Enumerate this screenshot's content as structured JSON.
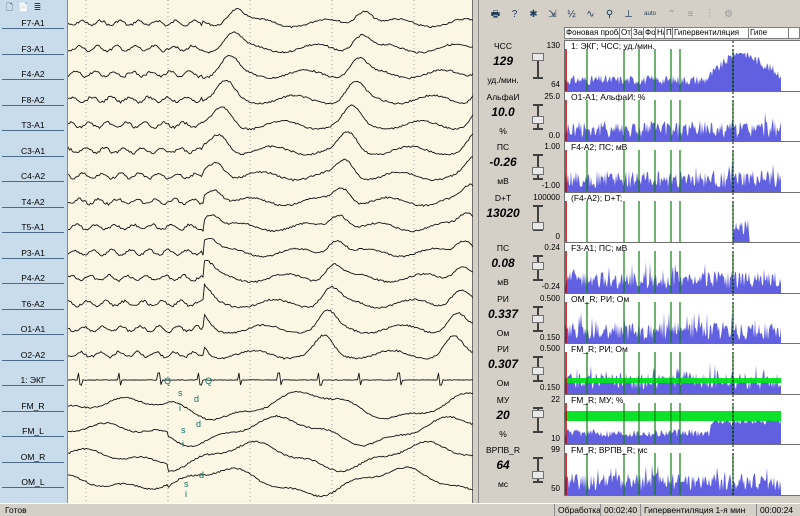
{
  "channels": [
    "F7-A1",
    "F3-A1",
    "F4-A2",
    "F8-A2",
    "T3-A1",
    "C3-A1",
    "C4-A2",
    "T4-A2",
    "T5-A1",
    "P3-A1",
    "P4-A2",
    "T6-A2",
    "O1-A1",
    "O2-A2",
    "1: ЭКГ",
    "FM_R",
    "FM_L",
    "OM_R",
    "OM_L"
  ],
  "eeg_markers": {
    "ecg_q1": "Q",
    "ecg_q2": "Q",
    "eye_letters": [
      "s",
      "i",
      "d",
      "d",
      "s",
      "i",
      "s",
      "i",
      "d"
    ]
  },
  "right_toolbar": [
    "print-icon",
    "help-icon",
    "tools-icon",
    "filter-icon",
    "frequency-icon",
    "wave-icon",
    "person-icon",
    "montage-icon",
    "auto-label",
    "freeze-icon",
    "list-icon",
    "chart-icon",
    "settings-icon"
  ],
  "right_toolbar_text": {
    "auto": "auto"
  },
  "stages": [
    "Фоновая проба",
    "Отк",
    "Зак",
    "Фот",
    "На",
    "П",
    "Гипервентиляция",
    "Гипе"
  ],
  "params": [
    {
      "name": "ЧСС",
      "value": "129",
      "unit": "уд./мин.",
      "max": "130",
      "min": "64",
      "caption": "1: ЭКГ; ЧСС; уд./мин.",
      "level": 0.98
    },
    {
      "name": "АльфаИ",
      "value": "10.0",
      "unit": "%",
      "max": "25.0",
      "min": "0.0",
      "caption": "O1-A1; АльфаИ; %",
      "level": 0.4
    },
    {
      "name": "ПС",
      "value": "-0.26",
      "unit": "мВ",
      "max": "1.00",
      "min": "-1.00",
      "caption": "F4-A2; ПС; мВ",
      "level": 0.37
    },
    {
      "name": "D+T",
      "value": "13020",
      "unit": "",
      "max": "100000",
      "min": "0",
      "caption": "(F4-A2); D+T;",
      "level": 0.13
    },
    {
      "name": "ПС",
      "value": "0.08",
      "unit": "мВ",
      "max": "0.24",
      "min": "-0.24",
      "caption": "F3-A1; ПС; мВ",
      "level": 0.67
    },
    {
      "name": "РИ",
      "value": "0.337",
      "unit": "Ом",
      "max": "0.500",
      "min": "0.150",
      "caption": "OM_R; РИ; Ом",
      "level": 0.53
    },
    {
      "name": "РИ",
      "value": "0.307",
      "unit": "Ом",
      "max": "0.500",
      "min": "0.150",
      "caption": "FM_R; РИ; Ом",
      "level": 0.45
    },
    {
      "name": "МУ",
      "value": "20",
      "unit": "%",
      "max": "22",
      "min": "10",
      "caption": "FM_R; МУ; %",
      "level": 0.83
    },
    {
      "name": "ВРПВ_R",
      "value": "64",
      "unit": "мс",
      "max": "99",
      "min": "50",
      "caption": "FM_R; ВРПВ_R; мс",
      "level": 0.29
    }
  ],
  "status": {
    "ready": "Готов",
    "mode": "Обработка",
    "elapsed": "00:02:40",
    "stage": "Гипервентиляция  1-я мин",
    "stage_time": "00:00:24"
  },
  "colors": {
    "trend_fill": "#6060e0",
    "marker_green": "#108010",
    "band_green": "#00e020",
    "eeg_bg": "#fbf7e4",
    "label_bg": "#c9dcec"
  }
}
